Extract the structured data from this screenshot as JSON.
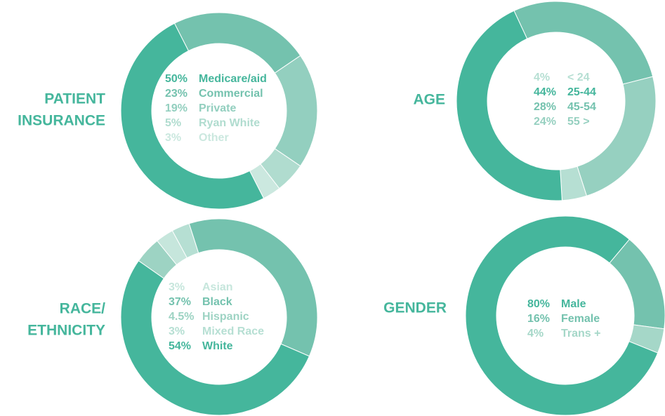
{
  "chart_data": [
    {
      "type": "pie",
      "title": [
        "PATIENT",
        "INSURANCE"
      ],
      "categories": [
        "Medicare/aid",
        "Commercial",
        "Private",
        "Ryan White",
        "Other"
      ],
      "values": [
        50,
        23,
        19,
        5,
        3
      ],
      "value_labels": [
        "50%",
        "23%",
        "19%",
        "5%",
        "3%"
      ],
      "colors": [
        "#45b69c",
        "#74c2ae",
        "#93cfbf",
        "#b0dccf",
        "#cbe8df"
      ]
    },
    {
      "type": "pie",
      "title": [
        "AGE"
      ],
      "categories": [
        "< 24",
        "25-44",
        "45-54",
        "55 >"
      ],
      "values": [
        4,
        44,
        28,
        24
      ],
      "value_labels": [
        "4%",
        "44%",
        "28%",
        "24%"
      ],
      "colors": [
        "#b6dfd3",
        "#45b69c",
        "#74c2ae",
        "#96d0c0"
      ]
    },
    {
      "type": "pie",
      "title": [
        "RACE/",
        "ETHNICITY"
      ],
      "categories": [
        "Asian",
        "Black",
        "Hispanic",
        "Mixed Race",
        "White"
      ],
      "values": [
        3,
        37,
        4.5,
        3,
        54
      ],
      "value_labels": [
        "3%",
        "37%",
        "4.5%",
        "3%",
        "54%"
      ],
      "colors": [
        "#c6e6dc",
        "#74c2ae",
        "#9dd3c3",
        "#b6dfd3",
        "#45b69c"
      ]
    },
    {
      "type": "pie",
      "title": [
        "GENDER"
      ],
      "categories": [
        "Male",
        "Female",
        "Trans +"
      ],
      "values": [
        80,
        16,
        4
      ],
      "value_labels": [
        "80%",
        "16%",
        "4%"
      ],
      "colors": [
        "#45b69c",
        "#74c2ae",
        "#a5d7c8"
      ]
    }
  ]
}
